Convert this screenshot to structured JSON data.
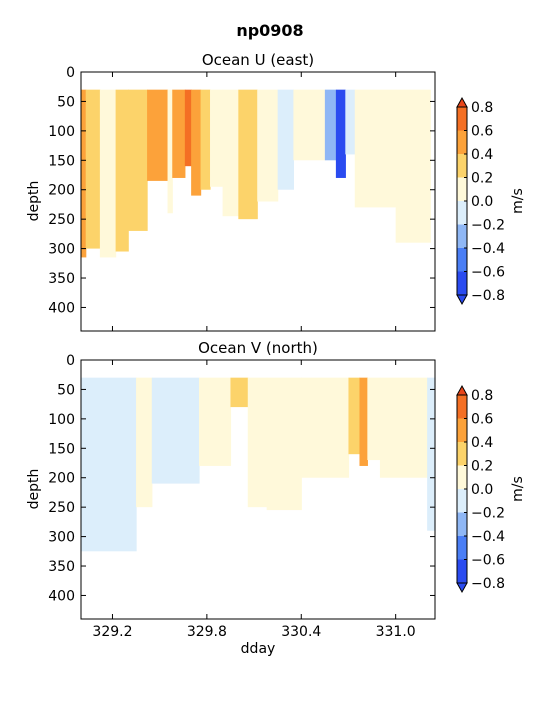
{
  "figure": {
    "title": "np0908"
  },
  "chart_data": [
    {
      "type": "heatmap",
      "title": "Ocean U (east)",
      "xlabel": "",
      "ylabel": "depth",
      "xlim": [
        329.0,
        331.25
      ],
      "ylim": [
        440,
        0
      ],
      "yticks": [
        0,
        50,
        100,
        150,
        200,
        250,
        300,
        350,
        400
      ],
      "x_ticks": [
        329.2,
        329.8,
        330.4,
        331.0
      ],
      "x_ticklabels_shown": false,
      "colorbar": {
        "label": "m/s",
        "levels": [
          -0.8,
          -0.6,
          -0.4,
          -0.2,
          0.0,
          0.2,
          0.4,
          0.6,
          0.8
        ],
        "ticklabels": [
          "0.8",
          "0.6",
          "0.4",
          "0.2",
          "0.0",
          "−0.2",
          "−0.4",
          "−0.6",
          "−0.8"
        ],
        "colors": [
          "#2a4bf0",
          "#4a7ef5",
          "#8fb7f5",
          "#dceefb",
          "#fff9da",
          "#fcd36a",
          "#fca23a",
          "#f46f24",
          "#e8461a"
        ]
      },
      "data_top": 30,
      "regions": [
        {
          "x0": 329.0,
          "x1": 329.03,
          "bottom": 315,
          "value": 0.45
        },
        {
          "x0": 329.03,
          "x1": 329.12,
          "bottom": 300,
          "value": 0.3
        },
        {
          "x0": 329.12,
          "x1": 329.22,
          "bottom": 315,
          "value": 0.1
        },
        {
          "x0": 329.22,
          "x1": 329.3,
          "bottom": 305,
          "value": 0.3
        },
        {
          "x0": 329.3,
          "x1": 329.42,
          "bottom": 270,
          "value": 0.3
        },
        {
          "x0": 329.42,
          "x1": 329.55,
          "bottom": 185,
          "value": 0.45
        },
        {
          "x0": 329.55,
          "x1": 329.58,
          "bottom": 240,
          "value": 0.15
        },
        {
          "x0": 329.58,
          "x1": 329.66,
          "bottom": 180,
          "value": 0.45
        },
        {
          "x0": 329.66,
          "x1": 329.7,
          "bottom": 160,
          "value": 0.65
        },
        {
          "x0": 329.7,
          "x1": 329.76,
          "bottom": 210,
          "value": 0.45
        },
        {
          "x0": 329.76,
          "x1": 329.82,
          "bottom": 200,
          "value": 0.3
        },
        {
          "x0": 329.82,
          "x1": 329.9,
          "bottom": 195,
          "value": 0.1
        },
        {
          "x0": 329.9,
          "x1": 330.0,
          "bottom": 245,
          "value": 0.1
        },
        {
          "x0": 330.0,
          "x1": 330.12,
          "bottom": 250,
          "value": 0.3
        },
        {
          "x0": 330.12,
          "x1": 330.25,
          "bottom": 220,
          "value": 0.1
        },
        {
          "x0": 330.25,
          "x1": 330.35,
          "bottom": 200,
          "value": -0.1
        },
        {
          "x0": 330.35,
          "x1": 330.55,
          "bottom": 150,
          "value": 0.1
        },
        {
          "x0": 330.55,
          "x1": 330.62,
          "bottom": 150,
          "value": -0.3
        },
        {
          "x0": 330.62,
          "x1": 330.68,
          "bottom": 180,
          "value": -0.65
        },
        {
          "x0": 330.68,
          "x1": 330.74,
          "bottom": 140,
          "value": -0.1
        },
        {
          "x0": 330.74,
          "x1": 331.0,
          "bottom": 230,
          "value": 0.1
        },
        {
          "x0": 331.0,
          "x1": 331.22,
          "bottom": 290,
          "value": 0.1
        }
      ]
    },
    {
      "type": "heatmap",
      "title": "Ocean V (north)",
      "xlabel": "dday",
      "ylabel": "depth",
      "xlim": [
        329.0,
        331.25
      ],
      "ylim": [
        440,
        0
      ],
      "yticks": [
        0,
        50,
        100,
        150,
        200,
        250,
        300,
        350,
        400
      ],
      "x_ticks": [
        329.2,
        329.8,
        330.4,
        331.0
      ],
      "x_ticklabels": [
        "329.2",
        "329.8",
        "330.4",
        "331.0"
      ],
      "x_ticklabels_shown": true,
      "colorbar": {
        "label": "m/s",
        "levels": [
          -0.8,
          -0.6,
          -0.4,
          -0.2,
          0.0,
          0.2,
          0.4,
          0.6,
          0.8
        ],
        "ticklabels": [
          "0.8",
          "0.6",
          "0.4",
          "0.2",
          "0.0",
          "−0.2",
          "−0.4",
          "−0.6",
          "−0.8"
        ],
        "colors": [
          "#2a4bf0",
          "#4a7ef5",
          "#8fb7f5",
          "#dceefb",
          "#fff9da",
          "#fcd36a",
          "#fca23a",
          "#f46f24",
          "#e8461a"
        ]
      },
      "data_top": 30,
      "regions": [
        {
          "x0": 329.0,
          "x1": 329.35,
          "bottom": 325,
          "value": -0.1
        },
        {
          "x0": 329.35,
          "x1": 329.45,
          "bottom": 250,
          "value": 0.1
        },
        {
          "x0": 329.45,
          "x1": 329.75,
          "bottom": 210,
          "value": -0.1
        },
        {
          "x0": 329.75,
          "x1": 329.95,
          "bottom": 180,
          "value": 0.1
        },
        {
          "x0": 329.95,
          "x1": 330.06,
          "bottom": 80,
          "value": 0.3
        },
        {
          "x0": 330.06,
          "x1": 330.18,
          "bottom": 250,
          "value": 0.1
        },
        {
          "x0": 330.18,
          "x1": 330.4,
          "bottom": 255,
          "value": 0.1
        },
        {
          "x0": 330.4,
          "x1": 330.7,
          "bottom": 200,
          "value": 0.1
        },
        {
          "x0": 330.7,
          "x1": 330.77,
          "bottom": 160,
          "value": 0.3
        },
        {
          "x0": 330.77,
          "x1": 330.82,
          "bottom": 180,
          "value": 0.45
        },
        {
          "x0": 330.82,
          "x1": 330.9,
          "bottom": 170,
          "value": 0.1
        },
        {
          "x0": 330.9,
          "x1": 331.2,
          "bottom": 200,
          "value": 0.1
        },
        {
          "x0": 331.2,
          "x1": 331.25,
          "bottom": 290,
          "value": -0.1
        }
      ]
    }
  ]
}
